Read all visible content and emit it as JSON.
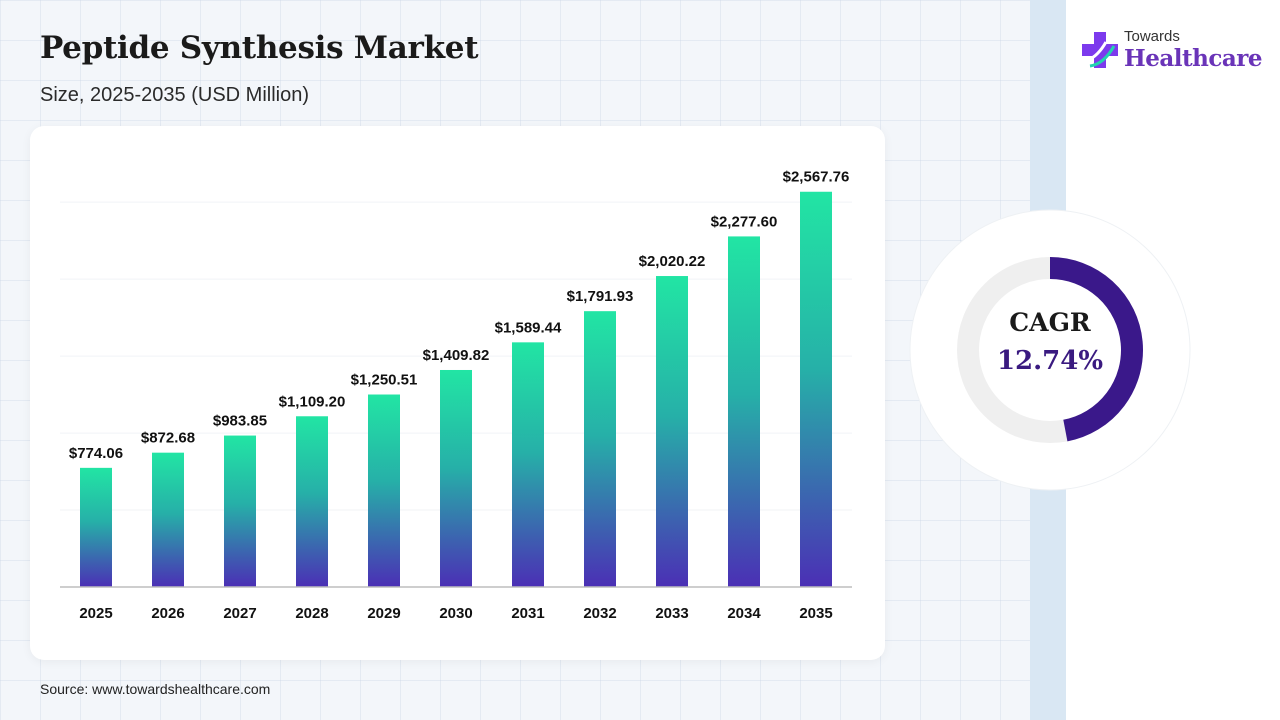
{
  "header": {
    "title": "Peptide Synthesis Market",
    "subtitle": "Size, 2025-2035 (USD Million)"
  },
  "logo": {
    "line1": "Towards",
    "line2": "Healthcare",
    "icon": "medical-cross-icon"
  },
  "source": "Source: www.towardshealthcare.com",
  "cagr": {
    "label": "CAGR",
    "value": "12.74%",
    "arc_fraction": 0.47
  },
  "colors": {
    "bar_top": "#22e5a4",
    "bar_bottom": "#4b2fb5",
    "cagr_arc": "#3a188a",
    "cagr_value": "#3a1a80",
    "logo_cross": "#7c3aed",
    "logo_text": "#6a34b8"
  },
  "chart_data": {
    "type": "bar",
    "categories": [
      "2025",
      "2026",
      "2027",
      "2028",
      "2029",
      "2030",
      "2031",
      "2032",
      "2033",
      "2034",
      "2035"
    ],
    "values": [
      774.06,
      872.68,
      983.85,
      1109.2,
      1250.51,
      1409.82,
      1589.44,
      1791.93,
      2020.22,
      2277.6,
      2567.76
    ],
    "data_labels": [
      "$774.06",
      "$872.68",
      "$983.85",
      "$1,109.20",
      "$1,250.51",
      "$1,409.82",
      "$1,589.44",
      "$1,791.93",
      "$2,020.22",
      "$2,277.60",
      "$2,567.76"
    ],
    "title": "Peptide Synthesis Market",
    "subtitle": "Size, 2025-2035 (USD Million)",
    "ylim": [
      0,
      2800
    ],
    "grid": true,
    "legend": "none"
  }
}
